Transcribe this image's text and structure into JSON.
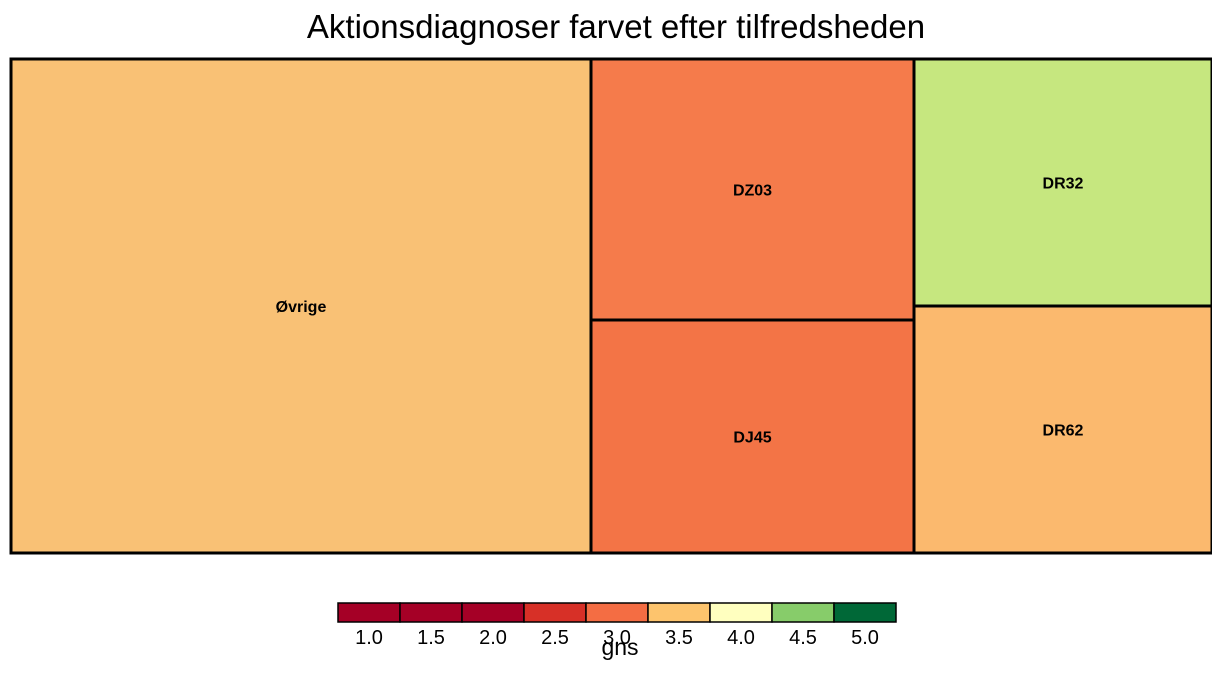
{
  "chart_data": {
    "type": "treemap",
    "title": "Aktionsdiagnoser farvet efter tilfredsheden",
    "tiles": [
      {
        "label": "Øvrige",
        "gns": 3.4,
        "color": "#f9c175"
      },
      {
        "label": "DZ03",
        "gns": 2.9,
        "color": "#f57b4b"
      },
      {
        "label": "DJ45",
        "gns": 2.85,
        "color": "#f37446"
      },
      {
        "label": "DR32",
        "gns": 4.4,
        "color": "#c6e77f"
      },
      {
        "label": "DR62",
        "gns": 3.3,
        "color": "#fbb96e"
      }
    ],
    "legend": {
      "title": "gns",
      "colors": [
        "#a50026",
        "#a50026",
        "#a50026",
        "#d73027",
        "#f46d43",
        "#fdc46d",
        "#ffffbf",
        "#87cc6a",
        "#006837"
      ],
      "tick_labels": [
        "1.0",
        "1.5",
        "2.0",
        "2.5",
        "3.0",
        "3.5",
        "4.0",
        "4.5",
        "5.0"
      ]
    }
  }
}
